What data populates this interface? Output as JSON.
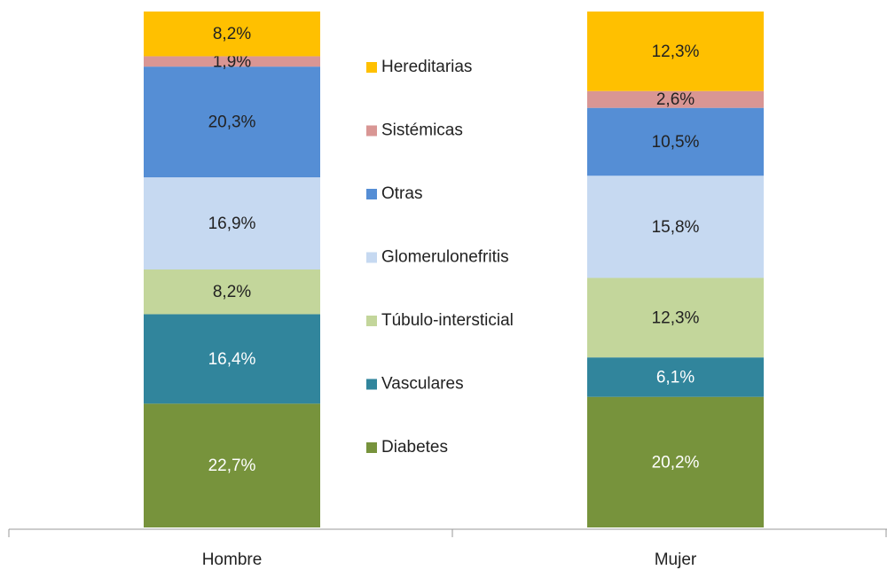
{
  "chart_data": {
    "type": "bar",
    "stacking": "percent",
    "categories": [
      "Hombre",
      "Mujer"
    ],
    "series": [
      {
        "name": "Diabetes",
        "color": "#77933c",
        "label_color": "#ffffff",
        "values": [
          22.7,
          20.2
        ],
        "value_labels": [
          "22,7%",
          "20,2%"
        ]
      },
      {
        "name": "Vasculares",
        "color": "#31859c",
        "label_color": "#ffffff",
        "values": [
          16.4,
          6.1
        ],
        "value_labels": [
          "16,4%",
          "6,1%"
        ]
      },
      {
        "name": "Túbulo-intersticial",
        "color": "#c3d69b",
        "label_color": "#222222",
        "values": [
          8.2,
          12.3
        ],
        "value_labels": [
          "8,2%",
          "12,3%"
        ]
      },
      {
        "name": "Glomerulonefritis",
        "color": "#c6d9f1",
        "label_color": "#222222",
        "values": [
          16.9,
          15.8
        ],
        "value_labels": [
          "16,9%",
          "15,8%"
        ]
      },
      {
        "name": "Otras",
        "color": "#558ed5",
        "label_color": "#222222",
        "values": [
          20.3,
          10.5
        ],
        "value_labels": [
          "20,3%",
          "10,5%"
        ]
      },
      {
        "name": "Sistémicas",
        "color": "#d99694",
        "label_color": "#222222",
        "values": [
          1.9,
          2.6
        ],
        "value_labels": [
          "1,9%",
          "2,6%"
        ]
      },
      {
        "name": "Hereditarias",
        "color": "#ffc000",
        "label_color": "#222222",
        "values": [
          8.2,
          12.3
        ],
        "value_labels": [
          "8,2%",
          "12,3%"
        ]
      }
    ],
    "legend": "center"
  }
}
